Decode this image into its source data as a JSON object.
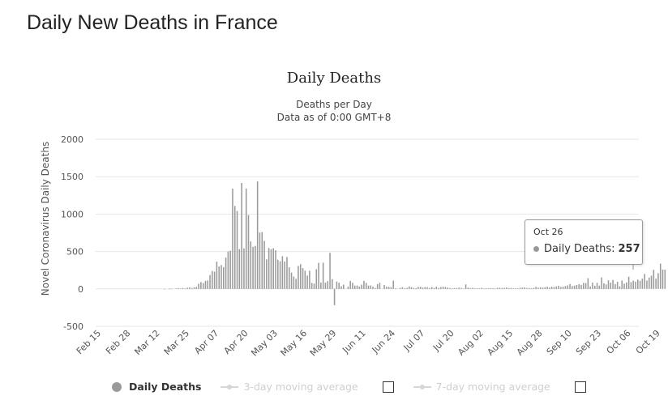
{
  "page_title": "Daily New Deaths in France",
  "chart_data": {
    "type": "bar",
    "title": "Daily Deaths",
    "subtitle_lines": [
      "Deaths per Day",
      "Data as of 0:00 GMT+8"
    ],
    "xlabel": "",
    "ylabel": "Novel Coronavirus Daily Deaths",
    "ylim": [
      -500,
      2000
    ],
    "yticks": [
      -500,
      0,
      500,
      1000,
      1500,
      2000
    ],
    "xtick_labels": [
      "Feb 15",
      "Feb 28",
      "Mar 12",
      "Mar 25",
      "Apr 07",
      "Apr 20",
      "May 03",
      "May 16",
      "May 29",
      "Jun 11",
      "Jun 24",
      "Jul 07",
      "Jul 20",
      "Aug 02",
      "Aug 15",
      "Aug 28",
      "Sep 10",
      "Sep 23",
      "Oct 06",
      "Oct 19"
    ],
    "x_start": "Feb 15",
    "x_end": "Oct 26",
    "grid": true,
    "series": [
      {
        "name": "Daily Deaths",
        "values": [
          0,
          0,
          0,
          0,
          0,
          0,
          0,
          0,
          0,
          0,
          0,
          0,
          0,
          0,
          0,
          0,
          0,
          0,
          0,
          0,
          0,
          0,
          0,
          0,
          0,
          0,
          0,
          0,
          1,
          0,
          2,
          2,
          0,
          5,
          9,
          3,
          11,
          3,
          16,
          21,
          12,
          21,
          27,
          69,
          91,
          78,
          108,
          112,
          186,
          240,
          231,
          365,
          299,
          319,
          292,
          418,
          499,
          509,
          1341,
          1108,
          1042,
          532,
          1416,
          541,
          1341,
          987,
          635,
          561,
          574,
          1438,
          753,
          761,
          642,
          395,
          547,
          531,
          544,
          516,
          389,
          369,
          437,
          367,
          427,
          289,
          218,
          166,
          135,
          306,
          330,
          278,
          243,
          178,
          243,
          80,
          70,
          263,
          348,
          85,
          351,
          83,
          104,
          483,
          131,
          -217,
          98,
          83,
          35,
          57,
          0,
          31,
          107,
          81,
          44,
          46,
          31,
          57,
          107,
          81,
          44,
          46,
          31,
          13,
          65,
          81,
          0,
          52,
          29,
          28,
          24,
          111,
          9,
          0,
          14,
          23,
          10,
          13,
          32,
          24,
          13,
          11,
          27,
          28,
          18,
          24,
          23,
          13,
          25,
          14,
          30,
          14,
          26,
          29,
          25,
          18,
          11,
          8,
          10,
          12,
          17,
          14,
          5,
          60,
          17,
          11,
          14,
          5,
          7,
          7,
          14,
          4,
          9,
          7,
          10,
          9,
          6,
          14,
          16,
          12,
          14,
          19,
          11,
          12,
          7,
          9,
          8,
          14,
          18,
          19,
          12,
          12,
          9,
          13,
          28,
          17,
          21,
          18,
          23,
          30,
          19,
          29,
          25,
          33,
          42,
          26,
          30,
          38,
          46,
          66,
          38,
          43,
          52,
          63,
          54,
          80,
          78,
          143,
          31,
          84,
          41,
          82,
          44,
          153,
          75,
          60,
          115,
          84,
          120,
          64,
          95,
          34,
          112,
          70,
          86,
          163,
          90,
          110,
          97,
          125,
          109,
          137,
          200,
          111,
          152,
          177,
          255,
          137,
          210,
          338,
          259,
          257
        ]
      },
      {
        "name": "3-day moving average",
        "visible": false
      },
      {
        "name": "7-day moving average",
        "visible": false
      }
    ],
    "tooltip": {
      "date": "Oct 26",
      "label": "Daily Deaths:",
      "value": "257"
    },
    "colors": {
      "bar": "#9a9a9a",
      "grid": "#e6e6e6",
      "text": "#555555",
      "tooltip_border": "#999999"
    },
    "legend_position": "bottom"
  }
}
